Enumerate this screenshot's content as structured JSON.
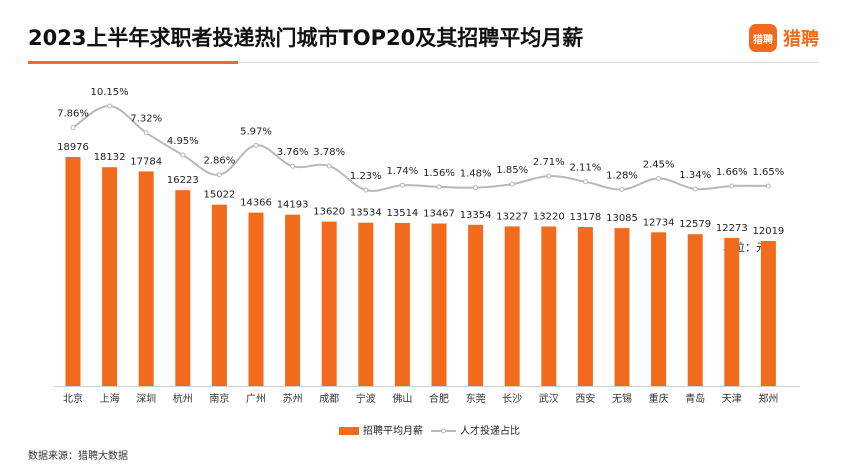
{
  "title": "2023上半年求职者投递热门城市TOP20及其招聘平均月薪",
  "logo": {
    "badge": "猎聘",
    "text": "猎聘"
  },
  "unit_label": "单位：元",
  "source": "数据来源：猎聘大数据",
  "colors": {
    "bar": "#f26b1d",
    "line": "#b8b8b8",
    "accent": "#f26b1d"
  },
  "chart_data": {
    "type": "bar",
    "title": "2023上半年求职者投递热门城市TOP20及其招聘平均月薪",
    "categories": [
      "北京",
      "上海",
      "深圳",
      "杭州",
      "南京",
      "广州",
      "苏州",
      "成都",
      "宁波",
      "佛山",
      "合肥",
      "东莞",
      "长沙",
      "武汉",
      "西安",
      "无锡",
      "重庆",
      "青岛",
      "天津",
      "郑州"
    ],
    "series": [
      {
        "name": "招聘平均月薪",
        "type": "bar",
        "values": [
          18976,
          18132,
          17784,
          16223,
          15022,
          14366,
          14193,
          13620,
          13534,
          13514,
          13467,
          13354,
          13227,
          13220,
          13178,
          13085,
          12734,
          12579,
          12273,
          12019
        ]
      },
      {
        "name": "人才投递占比",
        "type": "line",
        "values": [
          7.86,
          10.15,
          7.32,
          4.95,
          2.86,
          5.97,
          3.76,
          3.78,
          1.23,
          1.74,
          1.56,
          1.48,
          1.85,
          2.71,
          2.11,
          1.28,
          2.45,
          1.34,
          1.66,
          1.65
        ],
        "labels": [
          "7.86%",
          "10.15%",
          "7.32%",
          "4.95%",
          "2.86%",
          "5.97%",
          "3.76%",
          "3.78%",
          "1.23%",
          "1.74%",
          "1.56%",
          "1.48%",
          "1.85%",
          "2.71%",
          "2.11%",
          "1.28%",
          "2.45%",
          "1.34%",
          "1.66%",
          "1.65%"
        ]
      }
    ],
    "legend": [
      "招聘平均月薪",
      "人才投递占比"
    ],
    "legend_position": "bottom",
    "grid": false
  }
}
